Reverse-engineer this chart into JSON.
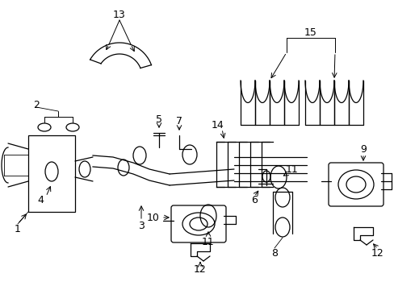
{
  "background_color": "#ffffff",
  "line_color": "#000000",
  "fig_width": 4.89,
  "fig_height": 3.6,
  "dpi": 100,
  "components": {
    "label_fs": 9,
    "leader_lw": 0.7,
    "part_lw": 0.9
  }
}
